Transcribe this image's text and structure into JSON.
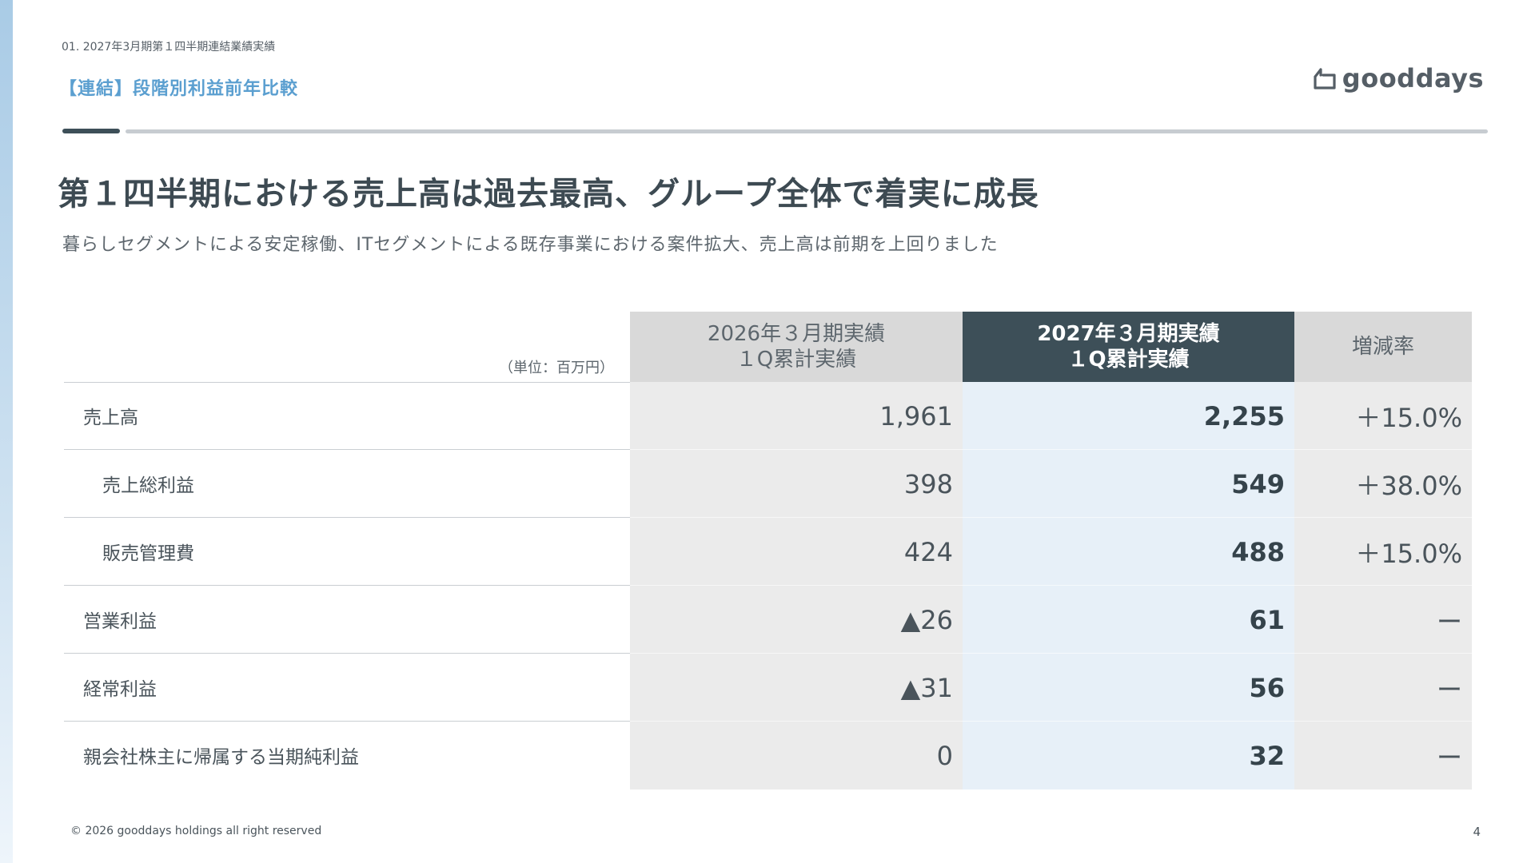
{
  "header": {
    "breadcrumb": "01. 2027年3月期第１四半期連結業績実績",
    "section_title": "【連結】段階別利益前年比較",
    "logo_text": "gooddays",
    "logo_icon": "house-outline-icon"
  },
  "headline": "第１四半期における売上高は過去最高、グループ全体で着実に成長",
  "subheadline": "暮らしセグメントによる安定稼働、ITセグメントによる既存事業における案件拡大、売上高は前期を上回りました",
  "table": {
    "unit_label": "（単位：百万円）",
    "columns": {
      "prev_line1": "2026年３月期実績",
      "prev_line2": "１Q累計実績",
      "cur_line1": "2027年３月期実績",
      "cur_line2": "１Q累計実績",
      "rate": "増減率"
    },
    "rows": [
      {
        "label": "売上高",
        "prev": "1,961",
        "cur": "2,255",
        "rate": "＋15.0%"
      },
      {
        "label": "売上総利益",
        "prev": "398",
        "cur": "549",
        "rate": "＋38.0%"
      },
      {
        "label": "販売管理費",
        "prev": "424",
        "cur": "488",
        "rate": "＋15.0%"
      },
      {
        "label": "営業利益",
        "prev": "▲26",
        "cur": "61",
        "rate": "ー"
      },
      {
        "label": "経常利益",
        "prev": "▲31",
        "cur": "56",
        "rate": "ー"
      },
      {
        "label": "親会社株主に帰属する当期純利益",
        "prev": "0",
        "cur": "32",
        "rate": "ー"
      }
    ]
  },
  "footer": {
    "copyright": "© 2026 gooddays holdings all right reserved",
    "page_number": "4"
  },
  "colors": {
    "accent_blue": "#5b9fd0",
    "dark_header": "#3d4f58",
    "current_column_bg": "#e7f0f8"
  }
}
